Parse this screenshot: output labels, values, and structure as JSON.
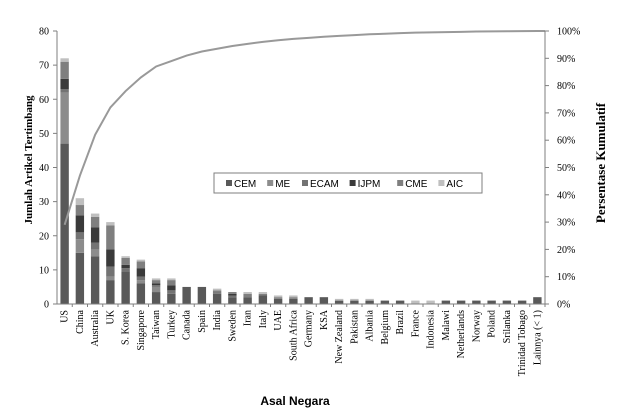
{
  "chart_data": {
    "type": "bar",
    "stacked": true,
    "xlabel": "Asal Negara",
    "ylabel": "Jumlah Artikel Tertimbang",
    "y2label": "Persentase Kumulatif",
    "ylim": [
      0,
      80
    ],
    "yticks": [
      0,
      10,
      20,
      30,
      40,
      50,
      60,
      70,
      80
    ],
    "y2lim": [
      0,
      100
    ],
    "y2ticks": [
      "0%",
      "10%",
      "20%",
      "30%",
      "40%",
      "50%",
      "60%",
      "70%",
      "80%",
      "90%",
      "100%"
    ],
    "legend_position": "center-right",
    "categories": [
      "US",
      "China",
      "Australia",
      "UK",
      "S. Korea",
      "Singapore",
      "Taiwan",
      "Turkey",
      "Canada",
      "Spain",
      "India",
      "Sweden",
      "Iran",
      "Italy",
      "UAE",
      "South Africa",
      "Germany",
      "KSA",
      "New Zealand",
      "Pakistan",
      "Albania",
      "Belgium",
      "Brazil",
      "France",
      "Indonesia",
      "Malawi",
      "Netherlands",
      "Norway",
      "Poland",
      "Srilanka",
      "Trinidad Tobago",
      "Lainnya (< 1)"
    ],
    "series": [
      {
        "name": "CEM",
        "color": "#595959",
        "values": [
          47,
          15,
          14,
          7,
          9.5,
          6,
          3.5,
          3,
          5,
          5,
          3,
          2,
          2,
          2.5,
          1.5,
          1.5,
          2,
          2,
          1,
          1,
          1,
          1,
          1,
          0,
          0,
          1,
          1,
          1,
          1,
          1,
          1,
          2
        ]
      },
      {
        "name": "ME",
        "color": "#8c8c8c",
        "values": [
          15,
          4,
          2,
          1,
          0,
          1,
          1.5,
          0,
          0,
          0,
          0,
          0,
          0,
          0,
          0,
          0,
          0,
          0,
          0,
          0,
          0,
          0,
          0,
          0,
          0,
          0,
          0,
          0,
          0,
          0,
          0,
          0
        ]
      },
      {
        "name": "ECAM",
        "color": "#737373",
        "values": [
          1,
          2,
          2,
          3,
          1,
          1,
          0.5,
          1,
          0,
          0,
          0.5,
          0.5,
          0,
          0,
          0,
          0,
          0,
          0,
          0,
          0,
          0,
          0,
          0,
          0,
          0,
          0,
          0,
          0,
          0,
          0,
          0,
          0
        ]
      },
      {
        "name": "IJPM",
        "color": "#3a3a3a",
        "values": [
          3,
          5,
          4.5,
          5,
          1,
          2.5,
          0.5,
          1.5,
          0,
          0,
          0,
          0.5,
          0,
          0,
          0,
          0,
          0,
          0,
          0,
          0,
          0,
          0,
          0,
          0,
          0,
          0,
          0,
          0,
          0,
          0,
          0,
          0
        ]
      },
      {
        "name": "CME",
        "color": "#7f7f7f",
        "values": [
          5,
          3,
          3,
          7,
          2,
          2,
          1,
          1.5,
          0,
          0,
          0.5,
          0.5,
          1,
          0.5,
          0.5,
          0.5,
          0,
          0,
          0,
          0,
          0,
          0,
          0,
          0,
          0,
          0,
          0,
          0,
          0,
          0,
          0,
          0
        ]
      },
      {
        "name": "AIC",
        "color": "#bfbfbf",
        "values": [
          1,
          2,
          1,
          1,
          0.5,
          0.5,
          0.5,
          0.5,
          0,
          0,
          0.5,
          0,
          0.5,
          0.5,
          0.5,
          0.5,
          0,
          0,
          0.5,
          0.5,
          0.5,
          0,
          0,
          1,
          1,
          0,
          0,
          0,
          0,
          0,
          0,
          0
        ]
      }
    ],
    "cumulative_percent": [
      29,
      47,
      62,
      72,
      78,
      83,
      87,
      89,
      91,
      92.5,
      93.5,
      94.5,
      95.3,
      96,
      96.6,
      97.1,
      97.5,
      97.9,
      98.2,
      98.5,
      98.8,
      99.0,
      99.2,
      99.4,
      99.5,
      99.6,
      99.7,
      99.8,
      99.85,
      99.9,
      99.95,
      100
    ],
    "cumulative_color": "#999999"
  }
}
